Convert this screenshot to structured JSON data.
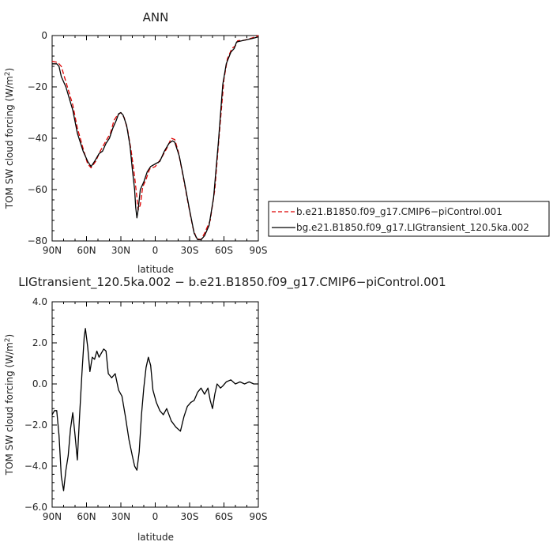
{
  "chart_data": [
    {
      "type": "line",
      "title": "ANN",
      "xlabel": "latitude",
      "ylabel": "TOM SW cloud forcing (W/m²)",
      "xlim": [
        90,
        -90
      ],
      "ylim": [
        -80,
        0
      ],
      "xticks": [
        90,
        60,
        30,
        0,
        -30,
        -60,
        -90
      ],
      "xtick_labels": [
        "90N",
        "60N",
        "30N",
        "0",
        "30S",
        "60S",
        "90S"
      ],
      "yticks": [
        0,
        -20,
        -40,
        -60,
        -80
      ],
      "ytick_labels": [
        "0",
        "−20",
        "−40",
        "−60",
        "−80"
      ],
      "legend_position": "right",
      "series": [
        {
          "name": "b.e21.B1850.f09_g17.CMIP6−piControl.001",
          "color": "#dd0000",
          "dash": true,
          "points": [
            [
              90,
              -10
            ],
            [
              85,
              -10.5
            ],
            [
              82,
              -12
            ],
            [
              78,
              -18
            ],
            [
              72,
              -27
            ],
            [
              68,
              -36
            ],
            [
              63,
              -44
            ],
            [
              59,
              -50
            ],
            [
              56,
              -51.5
            ],
            [
              52,
              -49
            ],
            [
              48,
              -45
            ],
            [
              43,
              -41
            ],
            [
              39,
              -38
            ],
            [
              36,
              -33
            ],
            [
              33,
              -31
            ],
            [
              30,
              -30
            ],
            [
              27,
              -32
            ],
            [
              24,
              -37
            ],
            [
              21,
              -45
            ],
            [
              18,
              -55
            ],
            [
              16,
              -63
            ],
            [
              15,
              -68
            ],
            [
              13,
              -66
            ],
            [
              11,
              -59
            ],
            [
              8,
              -56
            ],
            [
              5,
              -52
            ],
            [
              0,
              -51
            ],
            [
              -5,
              -48
            ],
            [
              -10,
              -44
            ],
            [
              -14,
              -40
            ],
            [
              -17,
              -40.5
            ],
            [
              -20,
              -45
            ],
            [
              -24,
              -54
            ],
            [
              -29,
              -66
            ],
            [
              -33,
              -75
            ],
            [
              -36,
              -79
            ],
            [
              -40,
              -79.5
            ],
            [
              -43,
              -77
            ],
            [
              -48,
              -72
            ],
            [
              -52,
              -60
            ],
            [
              -56,
              -38
            ],
            [
              -60,
              -17
            ],
            [
              -63,
              -9
            ],
            [
              -67,
              -5
            ],
            [
              -70,
              -4
            ],
            [
              -72,
              -2
            ],
            [
              -78,
              -1.8
            ],
            [
              -84,
              -1
            ],
            [
              -90,
              0
            ]
          ]
        },
        {
          "name": "bg.e21.B1850.f09_g17.LIGtransient_120.5ka.002",
          "color": "#000000",
          "dash": false,
          "points": [
            [
              90,
              -11
            ],
            [
              86,
              -11
            ],
            [
              84,
              -12
            ],
            [
              82,
              -16
            ],
            [
              78,
              -20
            ],
            [
              72,
              -29
            ],
            [
              68,
              -38
            ],
            [
              63,
              -45
            ],
            [
              59,
              -49
            ],
            [
              56,
              -51
            ],
            [
              53,
              -49
            ],
            [
              49,
              -46
            ],
            [
              46,
              -45
            ],
            [
              43,
              -42
            ],
            [
              40,
              -40
            ],
            [
              37,
              -36
            ],
            [
              34,
              -33
            ],
            [
              32,
              -30.5
            ],
            [
              30,
              -30
            ],
            [
              28,
              -31
            ],
            [
              25,
              -35
            ],
            [
              22,
              -43
            ],
            [
              20,
              -52
            ],
            [
              18,
              -60
            ],
            [
              17,
              -67
            ],
            [
              16,
              -71
            ],
            [
              15,
              -68
            ],
            [
              13,
              -60
            ],
            [
              10,
              -57
            ],
            [
              7,
              -53
            ],
            [
              4,
              -51
            ],
            [
              0,
              -50
            ],
            [
              -4,
              -49
            ],
            [
              -8,
              -45
            ],
            [
              -12,
              -42
            ],
            [
              -15,
              -41
            ],
            [
              -17,
              -41.5
            ],
            [
              -21,
              -47
            ],
            [
              -25,
              -56
            ],
            [
              -30,
              -68
            ],
            [
              -34,
              -77
            ],
            [
              -37,
              -79.5
            ],
            [
              -40,
              -79.5
            ],
            [
              -43,
              -78
            ],
            [
              -47,
              -74
            ],
            [
              -51,
              -63
            ],
            [
              -55,
              -42
            ],
            [
              -59,
              -19
            ],
            [
              -62,
              -11
            ],
            [
              -66,
              -6.5
            ],
            [
              -69,
              -5
            ],
            [
              -71,
              -2.5
            ],
            [
              -76,
              -2
            ],
            [
              -80,
              -1.6
            ],
            [
              -86,
              -1
            ],
            [
              -90,
              -0.5
            ]
          ]
        }
      ]
    },
    {
      "type": "line",
      "title": "LIGtransient_120.5ka.002 − b.e21.B1850.f09_g17.CMIP6−piControl.001",
      "xlabel": "latitude",
      "ylabel": "TOM SW cloud forcing (W/m²)",
      "xlim": [
        90,
        -90
      ],
      "ylim": [
        -6,
        4
      ],
      "xticks": [
        90,
        60,
        30,
        0,
        -30,
        -60,
        -90
      ],
      "xtick_labels": [
        "90N",
        "60N",
        "30N",
        "0",
        "30S",
        "60S",
        "90S"
      ],
      "yticks": [
        4,
        2,
        0,
        -2,
        -4,
        -6
      ],
      "ytick_labels": [
        "4.0",
        "2.0",
        "0.0",
        "−2.0",
        "−4.0",
        "−6.0"
      ],
      "series": [
        {
          "name": "",
          "color": "#000000",
          "dash": false,
          "points": [
            [
              90,
              -1.5
            ],
            [
              88,
              -1.3
            ],
            [
              86,
              -1.3
            ],
            [
              84,
              -2.5
            ],
            [
              82,
              -4.5
            ],
            [
              80,
              -5.2
            ],
            [
              78,
              -4.2
            ],
            [
              76,
              -3.5
            ],
            [
              74,
              -2.2
            ],
            [
              72,
              -1.4
            ],
            [
              70,
              -2.5
            ],
            [
              68,
              -3.7
            ],
            [
              66,
              -1.5
            ],
            [
              64,
              0.5
            ],
            [
              62,
              2.3
            ],
            [
              61,
              2.7
            ],
            [
              59,
              1.8
            ],
            [
              57,
              0.6
            ],
            [
              55,
              1.3
            ],
            [
              53,
              1.2
            ],
            [
              51,
              1.6
            ],
            [
              49,
              1.3
            ],
            [
              47,
              1.5
            ],
            [
              45,
              1.7
            ],
            [
              43,
              1.6
            ],
            [
              41,
              0.5
            ],
            [
              38,
              0.3
            ],
            [
              35,
              0.5
            ],
            [
              32,
              -0.3
            ],
            [
              29,
              -0.6
            ],
            [
              26,
              -1.6
            ],
            [
              23,
              -2.7
            ],
            [
              20,
              -3.5
            ],
            [
              18,
              -4.0
            ],
            [
              16,
              -4.2
            ],
            [
              14,
              -3.3
            ],
            [
              12,
              -1.5
            ],
            [
              10,
              -0.2
            ],
            [
              8,
              0.8
            ],
            [
              6,
              1.3
            ],
            [
              4,
              0.9
            ],
            [
              2,
              -0.3
            ],
            [
              -1,
              -0.9
            ],
            [
              -4,
              -1.3
            ],
            [
              -7,
              -1.5
            ],
            [
              -10,
              -1.2
            ],
            [
              -14,
              -1.8
            ],
            [
              -18,
              -2.1
            ],
            [
              -22,
              -2.3
            ],
            [
              -25,
              -1.6
            ],
            [
              -28,
              -1.1
            ],
            [
              -31,
              -0.9
            ],
            [
              -34,
              -0.8
            ],
            [
              -37,
              -0.4
            ],
            [
              -40,
              -0.2
            ],
            [
              -43,
              -0.5
            ],
            [
              -46,
              -0.2
            ],
            [
              -48,
              -0.8
            ],
            [
              -50,
              -1.2
            ],
            [
              -52,
              -0.5
            ],
            [
              -54,
              0.0
            ],
            [
              -57,
              -0.2
            ],
            [
              -59,
              -0.1
            ],
            [
              -62,
              0.1
            ],
            [
              -66,
              0.2
            ],
            [
              -70,
              0.0
            ],
            [
              -74,
              0.1
            ],
            [
              -78,
              0.0
            ],
            [
              -82,
              0.1
            ],
            [
              -86,
              0.0
            ],
            [
              -90,
              0.0
            ]
          ]
        }
      ]
    }
  ]
}
